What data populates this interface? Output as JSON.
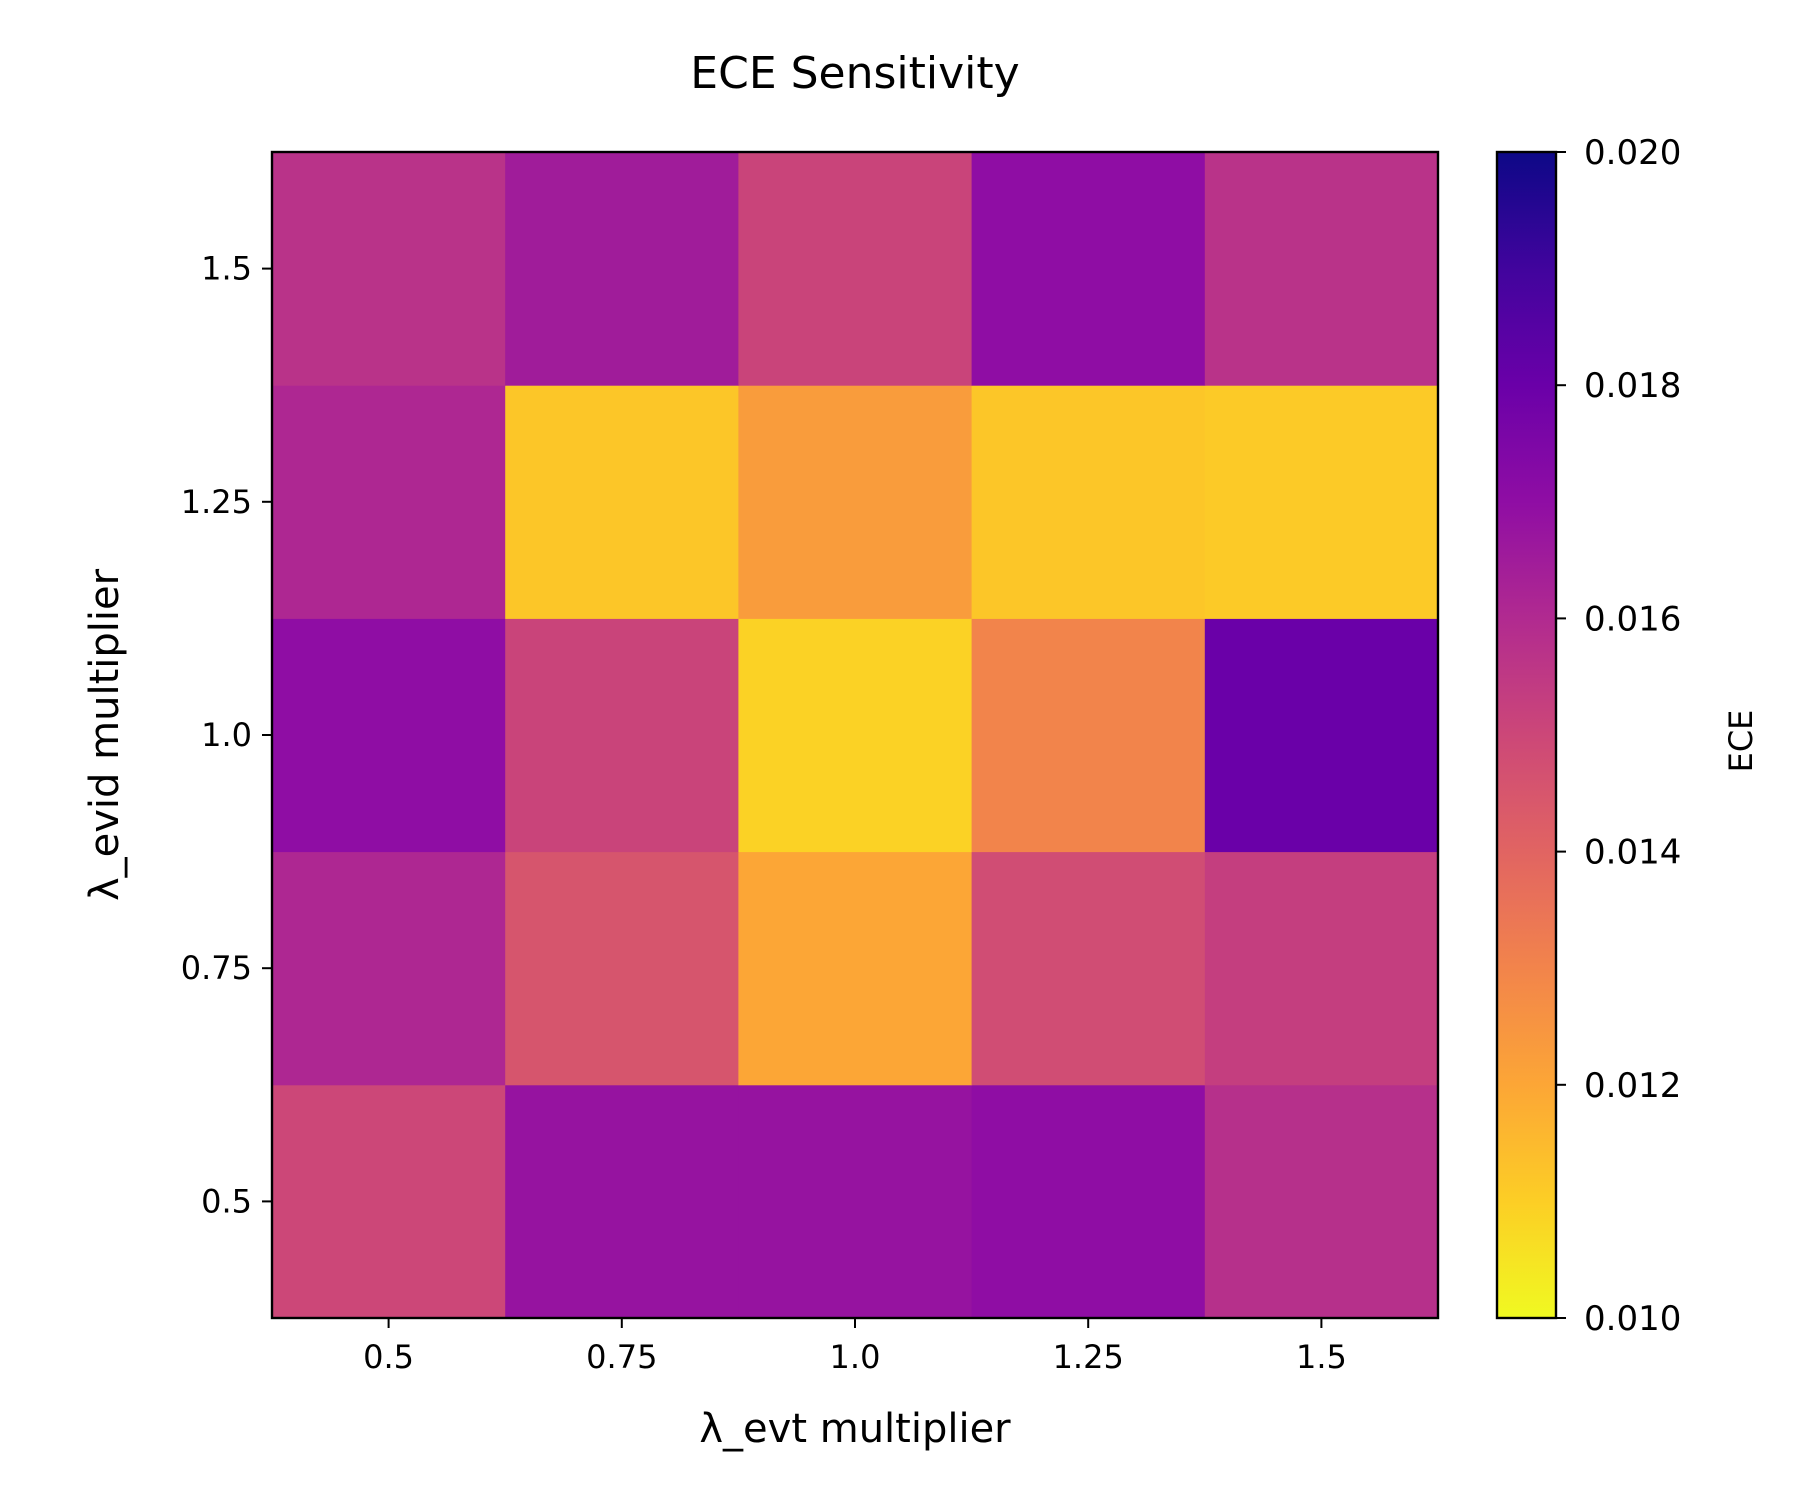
{
  "chart_data": {
    "type": "heatmap",
    "title": "ECE Sensitivity",
    "xlabel": "λ_evt multiplier",
    "ylabel": "λ_evid multiplier",
    "x_categories": [
      "0.5",
      "0.75",
      "1.0",
      "1.25",
      "1.5"
    ],
    "y_categories": [
      "0.5",
      "0.75",
      "1.0",
      "1.25",
      "1.5"
    ],
    "values_by_row_y": [
      [
        0.015,
        0.0168,
        0.0168,
        0.017,
        0.0158
      ],
      [
        0.0161,
        0.0145,
        0.012,
        0.0148,
        0.0153
      ],
      [
        0.017,
        0.0151,
        0.0109,
        0.013,
        0.018
      ],
      [
        0.0161,
        0.0112,
        0.0123,
        0.0112,
        0.0111
      ],
      [
        0.0157,
        0.0165,
        0.0151,
        0.017,
        0.0157
      ]
    ],
    "colormap": "plasma_r",
    "colorbar": {
      "label": "ECE",
      "range": [
        0.01,
        0.02
      ],
      "ticks": [
        "0.010",
        "0.012",
        "0.014",
        "0.016",
        "0.018",
        "0.020"
      ]
    },
    "grid": false
  }
}
